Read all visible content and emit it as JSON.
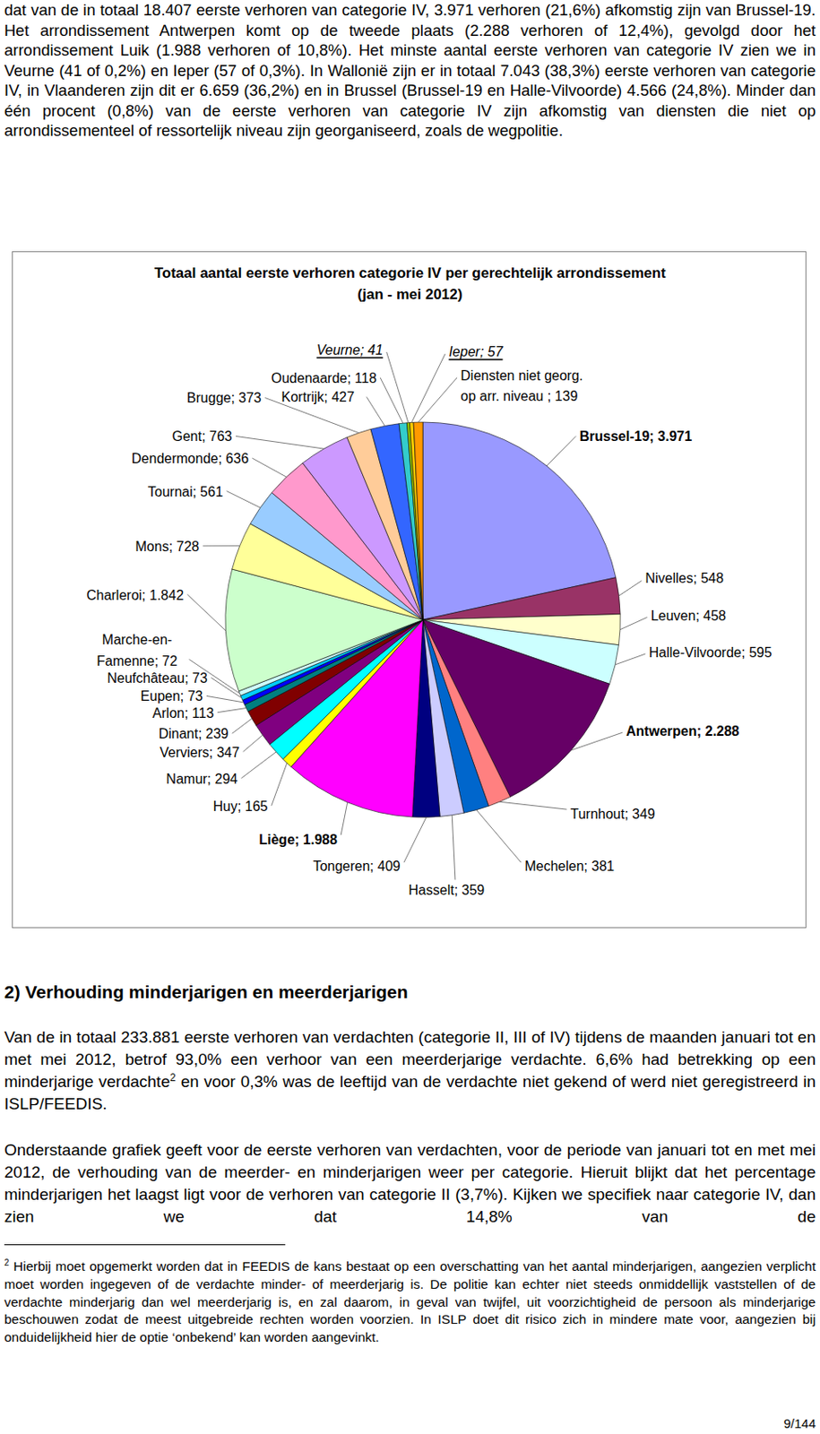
{
  "document": {
    "paragraph_top": "dat van de in totaal 18.407 eerste verhoren van categorie IV, 3.971 verhoren (21,6%) afkomstig zijn van Brussel-19. Het arrondissement Antwerpen komt op de tweede plaats (2.288 verhoren of 12,4%), gevolgd door het arrondissement Luik (1.988 verhoren of 10,8%). Het minste aantal eerste verhoren van categorie IV zien we in Veurne (41 of 0,2%) en Ieper (57 of 0,3%). In Wallonië zijn er in totaal 7.043 (38,3%) eerste verhoren van categorie IV, in Vlaanderen zijn dit er 6.659 (36,2%) en in Brussel (Brussel-19 en Halle-Vilvoorde) 4.566 (24,8%). Minder dan één procent (0,8%) van de eerste verhoren van categorie IV zijn afkomstig van diensten die niet op arrondissementeel of ressortelijk niveau zijn georganiseerd, zoals de wegpolitie.",
    "heading": "2) Verhouding minderjarigen en meerderjarigen",
    "paragraph_1": {
      "before": "Van de in totaal 233.881 eerste verhoren van verdachten (categorie II, III of IV) tijdens de maanden januari tot en met mei 2012, betrof 93,0% een verhoor van een meerderjarige verdachte. 6,6% had betrekking op een minderjarige verdachte",
      "footnote_ref": "2",
      "after": " en voor 0,3% was de leeftijd van de verdachte niet gekend of werd niet geregistreerd in ISLP/FEEDIS."
    },
    "paragraph_2": "Onderstaande grafiek geeft voor de eerste verhoren van verdachten, voor de periode van januari tot en met mei 2012, de verhouding van de meerder- en minderjarigen weer per categorie. Hieruit blijkt dat het percentage minderjarigen het laagst ligt voor de verhoren van categorie II (3,7%). Kijken we specifiek naar categorie IV, dan zien we dat 14,8% van de",
    "footnote": {
      "marker": "2",
      "text": "Hierbij moet opgemerkt worden dat in FEEDIS de kans bestaat op een overschatting van het aantal minderjarigen, aangezien verplicht moet worden ingegeven of de verdachte minder- of meerderjarig is. De politie kan echter niet steeds onmiddellijk vaststellen of de verdachte minderjarig dan wel meerderjarig is, en zal daarom, in geval van twijfel, uit voorzichtigheid de persoon als minderjarige beschouwen zodat de meest uitgebreide rechten worden voorzien. In ISLP doet dit risico zich in mindere mate voor, aangezien bij onduidelijkheid hier de optie ‘onbekend’ kan worden aangevinkt."
    },
    "page_number": "9/144"
  },
  "chart_data": {
    "type": "pie",
    "title": "Totaal aantal eerste verhoren categorie IV per gerechtelijk arrondissement",
    "subtitle": "(jan - mei 2012)",
    "labels": [
      "Brussel-19; 3.971",
      "Nivelles; 548",
      "Leuven; 458",
      "Halle-Vilvoorde; 595",
      "Antwerpen; 2.288",
      "Turnhout; 349",
      "Mechelen; 381",
      "Hasselt; 359",
      "Tongeren; 409",
      "Liège; 1.988",
      "Huy; 165",
      "Namur; 294",
      "Verviers; 347",
      "Dinant; 239",
      "Arlon; 113",
      "Eupen; 73",
      "Neufchâteau; 73",
      "Marche-en-\nFamenne; 72",
      "Charleroi; 1.842",
      "Mons; 728",
      "Tournai; 561",
      "Dendermonde; 636",
      "Gent; 763",
      "Brugge; 373",
      "Kortrijk; 427",
      "Oudenaarde; 118",
      "Veurne; 41",
      "Ieper; 57",
      "Diensten niet georg.\nop arr. niveau ; 139"
    ],
    "values": [
      3971,
      548,
      458,
      595,
      2288,
      349,
      381,
      359,
      409,
      1988,
      165,
      294,
      347,
      239,
      113,
      73,
      73,
      72,
      1842,
      728,
      561,
      636,
      763,
      373,
      427,
      118,
      41,
      57,
      139
    ],
    "colors": [
      "#9999ff",
      "#993366",
      "#ffffcc",
      "#ccffff",
      "#660066",
      "#ff8080",
      "#0066cc",
      "#ccccff",
      "#000080",
      "#ff00ff",
      "#ffff00",
      "#00ffff",
      "#800080",
      "#800000",
      "#008080",
      "#0000ff",
      "#00ccff",
      "#ccffff",
      "#ccffcc",
      "#ffff99",
      "#99ccff",
      "#ff99cc",
      "#cc99ff",
      "#ffcc99",
      "#3366ff",
      "#33cccc",
      "#99cc00",
      "#ffcc00",
      "#ff9900"
    ],
    "data_labels": true
  }
}
